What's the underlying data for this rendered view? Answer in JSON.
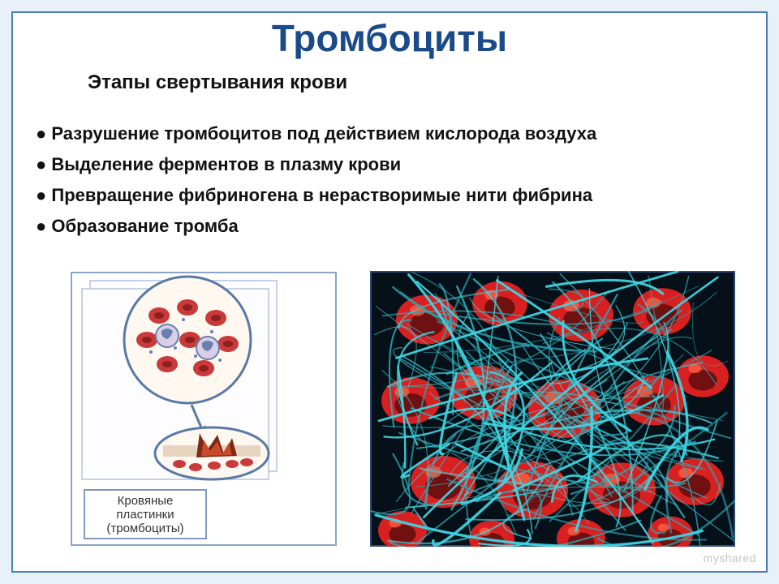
{
  "title": {
    "text": "Тромбоциты",
    "color": "#1a4a8a",
    "fontsize": 46,
    "weight": "bold"
  },
  "subtitle": {
    "text": "Этапы свертывания крови",
    "fontsize": 24,
    "weight": "bold"
  },
  "bullets": {
    "fontsize": 22,
    "weight": "bold",
    "items": [
      "Разрушение тромбоцитов под действием кислорода воздуха",
      "Выделение ферментов в плазму крови",
      "Превращение фибриногена в нерастворимые нити фибрина",
      "Образование тромба"
    ]
  },
  "left_figure": {
    "panel_border": "#8aa4c8",
    "panel_bg": "#fdfdff",
    "caption_box_border": "#7f99bf",
    "caption_box_bg": "#ffffff",
    "caption_line1": "Кровяные",
    "caption_line2": "пластинки",
    "caption_line3": "(тромбоциты)",
    "caption_fontsize": 15,
    "circle_border": "#5a79a5",
    "circle_bg": "#fff8f0",
    "rbc_color": "#c93a3a",
    "rbc_shadow": "#8e1f1f",
    "wbc_color": "#6a7fb0",
    "wbc_bg": "#d9d0e8",
    "wound_skin": "#e8d5c0",
    "wound_blood": "#b02525",
    "arrow_color": "#5a79a5"
  },
  "right_figure": {
    "border": "#2a4a7a",
    "bg": "#061018",
    "fibrin_color": "#3fd4e0",
    "fibrin_color2": "#2aa8b5",
    "cell_color": "#d82020",
    "cell_shadow": "#701010",
    "cell_highlight": "#ff6a4a"
  },
  "watermark": "myshared",
  "page_bg": "#e8f0f8",
  "card_border": "#4a7fb5"
}
